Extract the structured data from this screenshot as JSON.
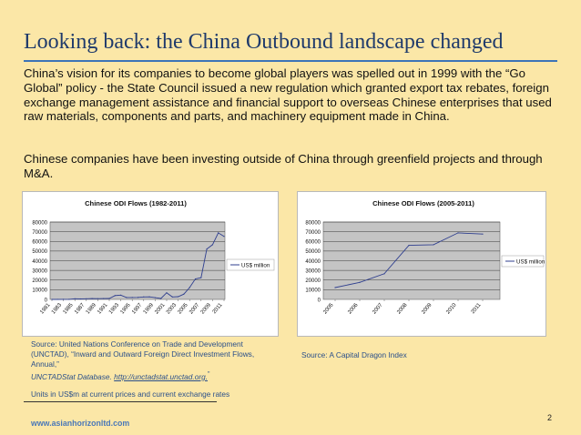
{
  "slide": {
    "title": "Looking back: the China Outbound landscape changed",
    "paragraph1": "China’s vision for its companies to become global players was spelled out in 1999 with the “Go Global” policy - the State Council issued a new regulation which granted export tax rebates, foreign exchange management assistance and financial support to overseas Chinese enterprises that used raw materials, components and parts, and machinery equipment made in China.",
    "paragraph2": "Chinese companies have been investing outside of China through greenfield projects and through M&A.",
    "source1_line1": "Source: United Nations Conference on Trade and Development (UNCTAD), “Inward and Outward Foreign Direct Investment Flows, Annual,”",
    "source1_italic": "UNCTADStat Database.",
    "source1_link": "http://unctadstat.unctad.org.",
    "source1_mark": "\"",
    "source2": "Source: A Capital Dragon Index",
    "units_note": "Units in US$m at current prices and current exchange rates",
    "website": "www.asianhorizonltd.com",
    "page_number": "2"
  },
  "colors": {
    "background": "#fbe7a7",
    "title": "#1f3a6b",
    "rule": "#3d74b7",
    "series_line": "#2f3f8f"
  },
  "chart_data": [
    {
      "type": "line",
      "title": "Chinese ODI Flows (1982-2011)",
      "series": [
        {
          "name": "US$ million",
          "x": [
            1981,
            1982,
            1983,
            1984,
            1985,
            1986,
            1987,
            1988,
            1989,
            1990,
            1991,
            1992,
            1993,
            1994,
            1995,
            1996,
            1997,
            1998,
            1999,
            2000,
            2001,
            2002,
            2003,
            2004,
            2005,
            2006,
            2007,
            2008,
            2009,
            2010,
            2011
          ],
          "values": [
            0,
            40,
            90,
            130,
            630,
            450,
            650,
            850,
            780,
            830,
            910,
            4000,
            4400,
            2000,
            2000,
            2110,
            2560,
            2630,
            1770,
            920,
            6880,
            2520,
            2850,
            5500,
            12260,
            21160,
            22470,
            52150,
            56530,
            68810,
            65120
          ]
        }
      ],
      "x_tick_labels": [
        "1981",
        "1983",
        "1985",
        "1987",
        "1989",
        "1991",
        "1993",
        "1995",
        "1997",
        "1999",
        "2001",
        "2003",
        "2005",
        "2007",
        "2009",
        "2011"
      ],
      "ylim": [
        0,
        80000
      ],
      "y_ticks": [
        "0",
        "10000",
        "20000",
        "30000",
        "40000",
        "50000",
        "60000",
        "70000",
        "80000"
      ],
      "grid": true,
      "legend_position": "right"
    },
    {
      "type": "line",
      "title": "Chinese ODI Flows (2005-2011)",
      "series": [
        {
          "name": "US$ million",
          "x": [
            "2005",
            "2006",
            "2007",
            "2008",
            "2009",
            "2010",
            "2011"
          ],
          "values": [
            12261,
            17634,
            26506,
            55907,
            56530,
            68811,
            67600
          ]
        }
      ],
      "x_tick_labels": [
        "2005",
        "2006",
        "2007",
        "2008",
        "2009",
        "2010",
        "2011"
      ],
      "ylim": [
        0,
        80000
      ],
      "y_ticks": [
        "0",
        "10000",
        "20000",
        "30000",
        "40000",
        "50000",
        "60000",
        "70000",
        "80000"
      ],
      "grid": true,
      "legend_position": "right"
    }
  ]
}
